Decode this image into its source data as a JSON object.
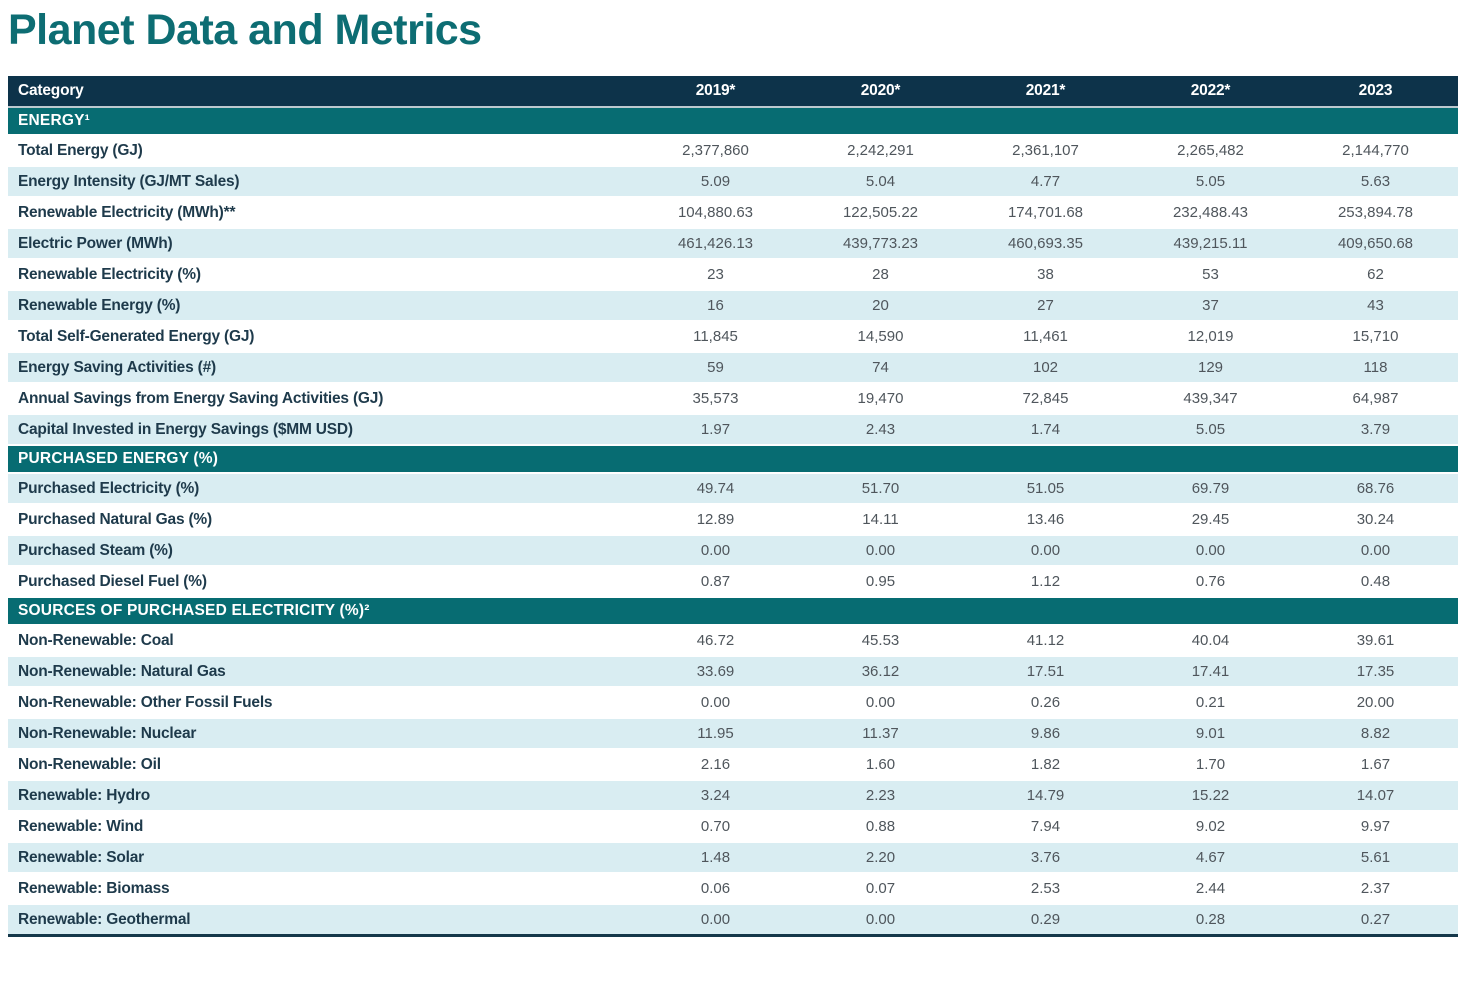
{
  "page": {
    "title": "Planet Data and Metrics"
  },
  "table": {
    "columns": [
      "Category",
      "2019*",
      "2020*",
      "2021*",
      "2022*",
      "2023"
    ],
    "sections": [
      {
        "header": "ENERGY¹",
        "first_row_tinted": false,
        "rows": [
          {
            "label": "Total Energy (GJ)",
            "values": [
              "2,377,860",
              "2,242,291",
              "2,361,107",
              "2,265,482",
              "2,144,770"
            ]
          },
          {
            "label": "Energy Intensity (GJ/MT Sales)",
            "values": [
              "5.09",
              "5.04",
              "4.77",
              "5.05",
              "5.63"
            ]
          },
          {
            "label": "Renewable Electricity (MWh)**",
            "values": [
              "104,880.63",
              "122,505.22",
              "174,701.68",
              "232,488.43",
              "253,894.78"
            ]
          },
          {
            "label": "Electric Power (MWh)",
            "values": [
              "461,426.13",
              "439,773.23",
              "460,693.35",
              "439,215.11",
              "409,650.68"
            ]
          },
          {
            "label": "Renewable Electricity (%)",
            "values": [
              "23",
              "28",
              "38",
              "53",
              "62"
            ]
          },
          {
            "label": "Renewable Energy (%)",
            "values": [
              "16",
              "20",
              "27",
              "37",
              "43"
            ]
          },
          {
            "label": "Total Self-Generated Energy (GJ)",
            "values": [
              "11,845",
              "14,590",
              "11,461",
              "12,019",
              "15,710"
            ]
          },
          {
            "label": "Energy Saving Activities (#)",
            "values": [
              "59",
              "74",
              "102",
              "129",
              "118"
            ]
          },
          {
            "label": "Annual Savings from Energy Saving Activities (GJ)",
            "values": [
              "35,573",
              "19,470",
              "72,845",
              "439,347",
              "64,987"
            ]
          },
          {
            "label": "Capital Invested in Energy Savings ($MM USD)",
            "values": [
              "1.97",
              "2.43",
              "1.74",
              "5.05",
              "3.79"
            ]
          }
        ]
      },
      {
        "header": "PURCHASED ENERGY (%)",
        "first_row_tinted": true,
        "rows": [
          {
            "label": "Purchased Electricity (%)",
            "values": [
              "49.74",
              "51.70",
              "51.05",
              "69.79",
              "68.76"
            ]
          },
          {
            "label": "Purchased Natural Gas (%)",
            "values": [
              "12.89",
              "14.11",
              "13.46",
              "29.45",
              "30.24"
            ]
          },
          {
            "label": "Purchased Steam (%)",
            "values": [
              "0.00",
              "0.00",
              "0.00",
              "0.00",
              "0.00"
            ]
          },
          {
            "label": "Purchased Diesel Fuel (%)",
            "values": [
              "0.87",
              "0.95",
              "1.12",
              "0.76",
              "0.48"
            ]
          }
        ]
      },
      {
        "header": "SOURCES OF PURCHASED ELECTRICITY (%)²",
        "first_row_tinted": false,
        "rows": [
          {
            "label": "Non-Renewable: Coal",
            "values": [
              "46.72",
              "45.53",
              "41.12",
              "40.04",
              "39.61"
            ]
          },
          {
            "label": "Non-Renewable: Natural Gas",
            "values": [
              "33.69",
              "36.12",
              "17.51",
              "17.41",
              "17.35"
            ]
          },
          {
            "label": "Non-Renewable: Other Fossil Fuels",
            "values": [
              "0.00",
              "0.00",
              "0.26",
              "0.21",
              "20.00"
            ]
          },
          {
            "label": "Non-Renewable: Nuclear",
            "values": [
              "11.95",
              "11.37",
              "9.86",
              "9.01",
              "8.82"
            ]
          },
          {
            "label": "Non-Renewable: Oil",
            "values": [
              "2.16",
              "1.60",
              "1.82",
              "1.70",
              "1.67"
            ]
          },
          {
            "label": "Renewable: Hydro",
            "values": [
              "3.24",
              "2.23",
              "14.79",
              "15.22",
              "14.07"
            ]
          },
          {
            "label": "Renewable: Wind",
            "values": [
              "0.70",
              "0.88",
              "7.94",
              "9.02",
              "9.97"
            ]
          },
          {
            "label": "Renewable: Solar",
            "values": [
              "1.48",
              "2.20",
              "3.76",
              "4.67",
              "5.61"
            ]
          },
          {
            "label": "Renewable: Biomass",
            "values": [
              "0.06",
              "0.07",
              "2.53",
              "2.44",
              "2.37"
            ]
          },
          {
            "label": "Renewable: Geothermal",
            "values": [
              "0.00",
              "0.00",
              "0.29",
              "0.28",
              "0.27"
            ]
          }
        ]
      }
    ]
  },
  "colors": {
    "title": "#0d6d73",
    "column_header_bg": "#0d334a",
    "section_header_bg": "#076c72",
    "tinted_row_bg": "#d9edf2",
    "label_text": "#1e3a4b",
    "value_text": "#4f565c",
    "header_separator": "#bcc9cf",
    "table_bottom_border": "#15384a"
  }
}
